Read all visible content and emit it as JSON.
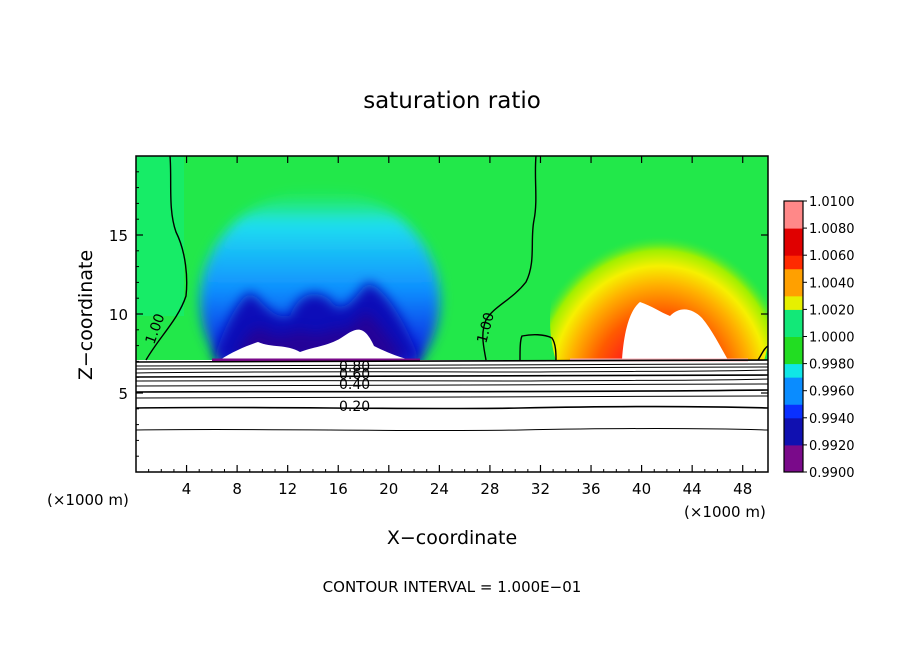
{
  "chart_data": {
    "type": "heatmap",
    "title": "saturation ratio",
    "xlabel": "X−coordinate",
    "ylabel": "Z−coordinate",
    "x_units_left": "(×1000 m)",
    "x_units_right": "(×1000 m)",
    "xlim": [
      0,
      50
    ],
    "ylim": [
      0,
      20
    ],
    "x_ticks": [
      4,
      8,
      12,
      16,
      20,
      24,
      28,
      32,
      36,
      40,
      44,
      48
    ],
    "y_ticks": [
      5,
      10,
      15
    ],
    "colorbar": {
      "min": 0.99,
      "max": 1.01,
      "tick_labels": [
        "1.0100",
        "1.0080",
        "1.0060",
        "1.0040",
        "1.0020",
        "1.0000",
        "0.9980",
        "0.9960",
        "0.9940",
        "0.9920",
        "0.9900"
      ],
      "colors": [
        "#7a0a8a",
        "#1010b0",
        "#0a30ff",
        "#0a8cff",
        "#10e6e6",
        "#22dd22",
        "#12e878",
        "#e6f000",
        "#ffa000",
        "#ff2a00",
        "#e00000",
        "#ff8888"
      ]
    },
    "regions": [
      {
        "name": "background",
        "value": 1.0,
        "color": "#22e84a"
      },
      {
        "name": "subsaturated-plume",
        "x_range": [
          6,
          24
        ],
        "z_range": [
          7.5,
          17
        ],
        "min_value": 0.992
      },
      {
        "name": "supersaturated-plume",
        "x_range": [
          34,
          50
        ],
        "z_range": [
          7.5,
          16.5
        ],
        "max_value": 1.01
      },
      {
        "name": "masked-lower-region",
        "z_range": [
          0,
          7.3
        ],
        "color": "#ffffff"
      }
    ],
    "contour_labels": [
      "1.00",
      "1.00",
      "0.80",
      "0.60",
      "0.40",
      "0.20"
    ],
    "contour_interval_text": "CONTOUR INTERVAL = 1.000E−01"
  }
}
